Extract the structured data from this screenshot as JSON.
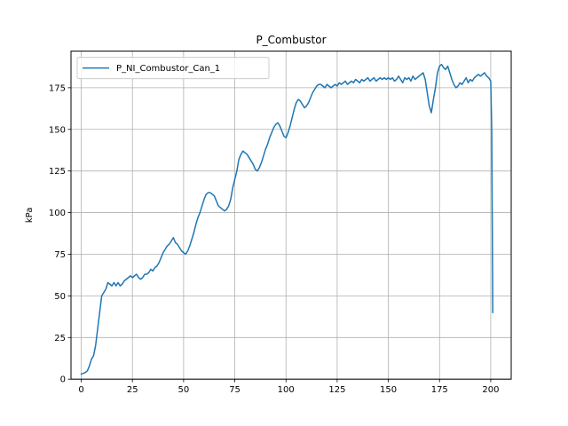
{
  "chart_data": {
    "type": "line",
    "title": "P_Combustor",
    "xlabel": "",
    "ylabel": "kPa",
    "xlim": [
      -5,
      210
    ],
    "ylim": [
      0,
      197
    ],
    "xticks": [
      0,
      25,
      50,
      75,
      100,
      125,
      150,
      175,
      200
    ],
    "yticks": [
      0,
      25,
      50,
      75,
      100,
      125,
      150,
      175
    ],
    "grid": true,
    "legend_position": "top-left",
    "series": [
      {
        "name": "P_NI_Combustor_Can_1",
        "color": "#1f77b4",
        "points": [
          [
            0,
            3
          ],
          [
            2,
            4
          ],
          [
            3,
            5
          ],
          [
            4,
            8
          ],
          [
            5,
            12
          ],
          [
            6,
            14
          ],
          [
            7,
            20
          ],
          [
            8,
            30
          ],
          [
            9,
            40
          ],
          [
            10,
            50
          ],
          [
            11,
            52
          ],
          [
            12,
            54
          ],
          [
            13,
            58
          ],
          [
            14,
            57
          ],
          [
            15,
            56
          ],
          [
            16,
            58
          ],
          [
            17,
            56
          ],
          [
            18,
            58
          ],
          [
            19,
            56
          ],
          [
            20,
            57
          ],
          [
            21,
            59
          ],
          [
            22,
            60
          ],
          [
            23,
            61
          ],
          [
            24,
            62
          ],
          [
            25,
            61
          ],
          [
            26,
            62
          ],
          [
            27,
            63
          ],
          [
            28,
            61
          ],
          [
            29,
            60
          ],
          [
            30,
            61
          ],
          [
            31,
            63
          ],
          [
            32,
            63
          ],
          [
            33,
            64
          ],
          [
            34,
            66
          ],
          [
            35,
            65
          ],
          [
            36,
            67
          ],
          [
            37,
            68
          ],
          [
            38,
            70
          ],
          [
            39,
            73
          ],
          [
            40,
            76
          ],
          [
            41,
            78
          ],
          [
            42,
            80
          ],
          [
            43,
            81
          ],
          [
            44,
            83
          ],
          [
            45,
            85
          ],
          [
            46,
            82
          ],
          [
            47,
            81
          ],
          [
            48,
            79
          ],
          [
            49,
            77
          ],
          [
            50,
            76
          ],
          [
            51,
            75
          ],
          [
            52,
            77
          ],
          [
            53,
            80
          ],
          [
            54,
            84
          ],
          [
            55,
            88
          ],
          [
            56,
            93
          ],
          [
            57,
            97
          ],
          [
            58,
            100
          ],
          [
            59,
            104
          ],
          [
            60,
            108
          ],
          [
            61,
            111
          ],
          [
            62,
            112
          ],
          [
            63,
            112
          ],
          [
            64,
            111
          ],
          [
            65,
            110
          ],
          [
            66,
            107
          ],
          [
            67,
            104
          ],
          [
            68,
            103
          ],
          [
            69,
            102
          ],
          [
            70,
            101
          ],
          [
            71,
            102
          ],
          [
            72,
            104
          ],
          [
            73,
            108
          ],
          [
            74,
            115
          ],
          [
            75,
            120
          ],
          [
            76,
            125
          ],
          [
            77,
            132
          ],
          [
            78,
            135
          ],
          [
            79,
            137
          ],
          [
            80,
            136
          ],
          [
            81,
            135
          ],
          [
            82,
            133
          ],
          [
            83,
            131
          ],
          [
            84,
            129
          ],
          [
            85,
            126
          ],
          [
            86,
            125
          ],
          [
            87,
            127
          ],
          [
            88,
            130
          ],
          [
            89,
            134
          ],
          [
            90,
            138
          ],
          [
            91,
            141
          ],
          [
            92,
            145
          ],
          [
            93,
            148
          ],
          [
            94,
            151
          ],
          [
            95,
            153
          ],
          [
            96,
            154
          ],
          [
            97,
            152
          ],
          [
            98,
            149
          ],
          [
            99,
            146
          ],
          [
            100,
            145
          ],
          [
            101,
            148
          ],
          [
            102,
            152
          ],
          [
            103,
            157
          ],
          [
            104,
            162
          ],
          [
            105,
            166
          ],
          [
            106,
            168
          ],
          [
            107,
            167
          ],
          [
            108,
            165
          ],
          [
            109,
            163
          ],
          [
            110,
            164
          ],
          [
            111,
            166
          ],
          [
            112,
            169
          ],
          [
            113,
            172
          ],
          [
            114,
            174
          ],
          [
            115,
            176
          ],
          [
            116,
            177
          ],
          [
            117,
            177
          ],
          [
            118,
            176
          ],
          [
            119,
            175
          ],
          [
            120,
            177
          ],
          [
            121,
            176
          ],
          [
            122,
            175
          ],
          [
            123,
            176
          ],
          [
            124,
            177
          ],
          [
            125,
            176
          ],
          [
            126,
            178
          ],
          [
            127,
            177
          ],
          [
            128,
            178
          ],
          [
            129,
            179
          ],
          [
            130,
            177
          ],
          [
            131,
            178
          ],
          [
            132,
            179
          ],
          [
            133,
            178
          ],
          [
            134,
            180
          ],
          [
            135,
            179
          ],
          [
            136,
            178
          ],
          [
            137,
            180
          ],
          [
            138,
            179
          ],
          [
            139,
            180
          ],
          [
            140,
            181
          ],
          [
            141,
            179
          ],
          [
            142,
            180
          ],
          [
            143,
            181
          ],
          [
            144,
            179
          ],
          [
            145,
            180
          ],
          [
            146,
            181
          ],
          [
            147,
            180
          ],
          [
            148,
            181
          ],
          [
            149,
            180
          ],
          [
            150,
            181
          ],
          [
            151,
            180
          ],
          [
            152,
            181
          ],
          [
            153,
            179
          ],
          [
            154,
            180
          ],
          [
            155,
            182
          ],
          [
            156,
            180
          ],
          [
            157,
            178
          ],
          [
            158,
            181
          ],
          [
            159,
            180
          ],
          [
            160,
            181
          ],
          [
            161,
            179
          ],
          [
            162,
            182
          ],
          [
            163,
            180
          ],
          [
            164,
            181
          ],
          [
            165,
            182
          ],
          [
            166,
            183
          ],
          [
            167,
            184
          ],
          [
            168,
            180
          ],
          [
            169,
            172
          ],
          [
            170,
            164
          ],
          [
            171,
            160
          ],
          [
            172,
            168
          ],
          [
            173,
            175
          ],
          [
            174,
            184
          ],
          [
            175,
            188
          ],
          [
            176,
            189
          ],
          [
            177,
            187
          ],
          [
            178,
            186
          ],
          [
            179,
            188
          ],
          [
            180,
            184
          ],
          [
            181,
            180
          ],
          [
            182,
            177
          ],
          [
            183,
            175
          ],
          [
            184,
            176
          ],
          [
            185,
            178
          ],
          [
            186,
            177
          ],
          [
            187,
            179
          ],
          [
            188,
            181
          ],
          [
            189,
            178
          ],
          [
            190,
            180
          ],
          [
            191,
            179
          ],
          [
            192,
            181
          ],
          [
            193,
            182
          ],
          [
            194,
            183
          ],
          [
            195,
            182
          ],
          [
            196,
            183
          ],
          [
            197,
            184
          ],
          [
            198,
            182
          ],
          [
            199,
            181
          ],
          [
            200,
            179
          ],
          [
            200.5,
            150
          ],
          [
            201,
            40
          ]
        ]
      }
    ]
  }
}
